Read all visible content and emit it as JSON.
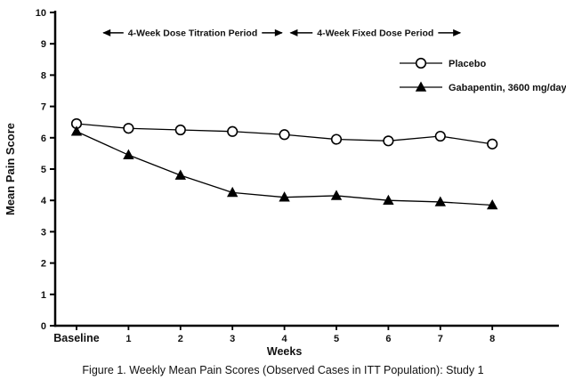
{
  "caption": "Figure 1. Weekly Mean Pain Scores (Observed Cases in ITT Population): Study 1",
  "colors": {
    "axis": "#000000",
    "text": "#111111",
    "background": "#ffffff",
    "marker_fill_open": "#ffffff"
  },
  "chart_data": {
    "type": "line",
    "title": "",
    "xlabel": "Weeks",
    "ylabel": "Mean Pain Score",
    "ylim": [
      0,
      10
    ],
    "yticks": [
      0,
      1,
      2,
      3,
      4,
      5,
      6,
      7,
      8,
      9,
      10
    ],
    "grid": false,
    "legend_position": "top-right",
    "categories": [
      "Baseline",
      "1",
      "2",
      "3",
      "4",
      "5",
      "6",
      "7",
      "8"
    ],
    "series": [
      {
        "name": "Placebo",
        "marker": "circle-open",
        "values": [
          6.45,
          6.3,
          6.25,
          6.2,
          6.1,
          5.95,
          5.9,
          6.05,
          5.8
        ]
      },
      {
        "name": "Gabapentin, 3600 mg/day",
        "marker": "triangle-filled",
        "values": [
          6.2,
          5.45,
          4.8,
          4.25,
          4.1,
          4.15,
          4.0,
          3.95,
          3.85
        ]
      }
    ],
    "annotations": [
      {
        "label": "4-Week Dose Titration Period",
        "x_start": 0.5,
        "x_end": 3.97,
        "y": 9.35
      },
      {
        "label": "4-Week Fixed Dose Period",
        "x_start": 4.1,
        "x_end": 7.4,
        "y": 9.35
      }
    ]
  }
}
